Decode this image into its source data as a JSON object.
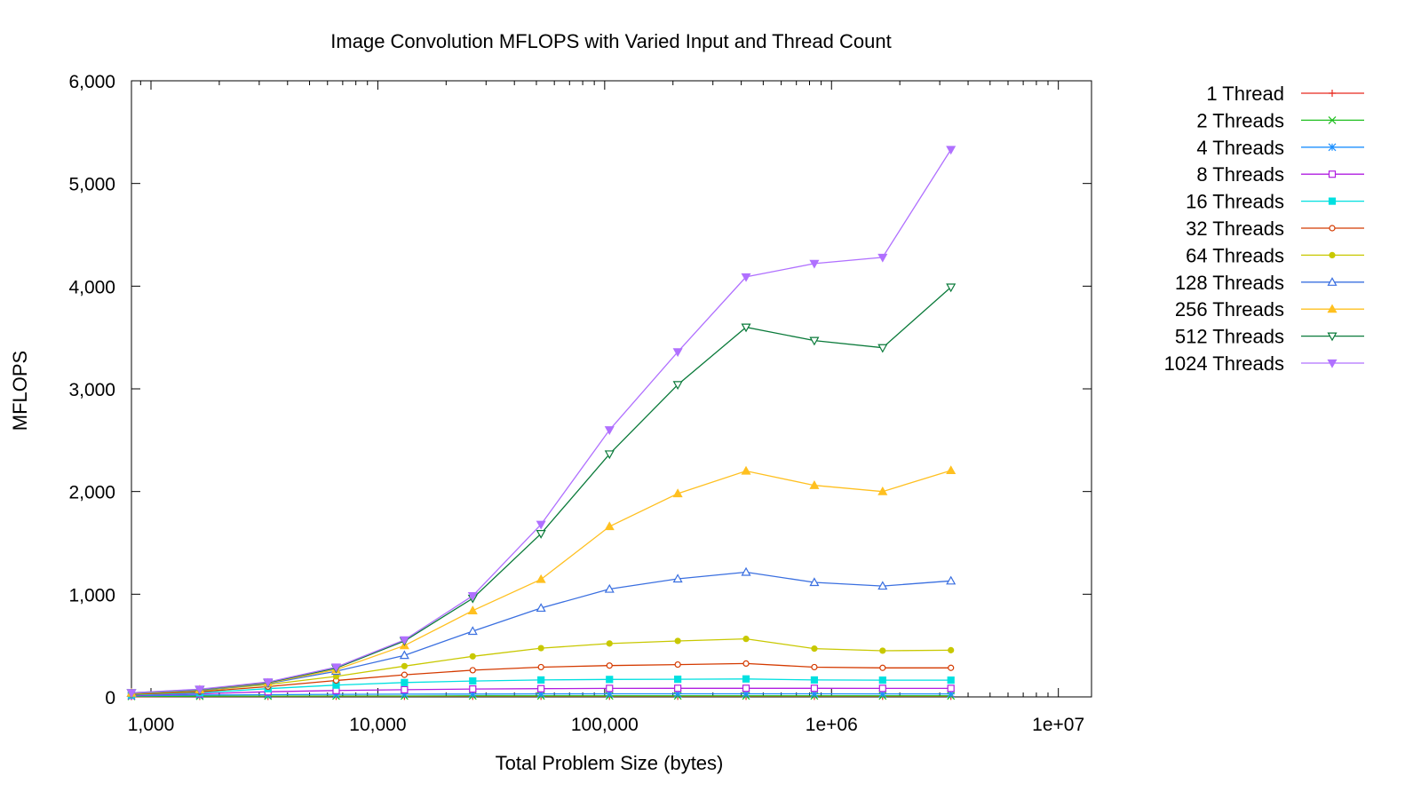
{
  "chart_data": {
    "type": "line",
    "title": "Image Convolution MFLOPS with Varied Input and Thread Count",
    "xlabel": "Total Problem Size (bytes)",
    "ylabel": "MFLOPS",
    "x_scale": "log",
    "xlim": [
      820,
      14000000
    ],
    "ylim": [
      0,
      6000
    ],
    "x_ticks": [
      1000,
      10000,
      100000,
      1000000,
      10000000
    ],
    "x_tick_labels": [
      "1,000",
      "10,000",
      "100,000",
      "1e+06",
      "1e+07"
    ],
    "y_ticks": [
      0,
      1000,
      2000,
      3000,
      4000,
      5000,
      6000
    ],
    "y_tick_labels": [
      "0",
      "1,000",
      "2,000",
      "3,000",
      "4,000",
      "5,000",
      "6,000"
    ],
    "grid": false,
    "legend_position": "outside-right-top",
    "x": [
      820,
      1640,
      3280,
      6550,
      13100,
      26200,
      52400,
      105000,
      210000,
      420000,
      840000,
      1680000,
      3360000
    ],
    "series": [
      {
        "name": "1 Thread",
        "color": "#e8281e",
        "marker": "plus",
        "values": [
          3,
          4,
          4,
          5,
          5,
          5,
          5,
          5,
          5,
          5,
          5,
          5,
          5
        ]
      },
      {
        "name": "2 Threads",
        "color": "#1fbf1f",
        "marker": "cross",
        "values": [
          5,
          7,
          8,
          9,
          9,
          10,
          10,
          10,
          10,
          10,
          10,
          10,
          10
        ]
      },
      {
        "name": "4 Threads",
        "color": "#1e90ff",
        "marker": "star",
        "values": [
          10,
          18,
          22,
          25,
          27,
          28,
          29,
          30,
          30,
          30,
          30,
          29,
          29
        ]
      },
      {
        "name": "8 Threads",
        "color": "#b01ee0",
        "marker": "square-open",
        "values": [
          15,
          30,
          50,
          62,
          70,
          77,
          80,
          83,
          84,
          84,
          84,
          83,
          83
        ]
      },
      {
        "name": "16 Threads",
        "color": "#00e0e0",
        "marker": "square-filled",
        "values": [
          20,
          40,
          80,
          115,
          140,
          155,
          165,
          170,
          172,
          175,
          165,
          163,
          163
        ]
      },
      {
        "name": "32 Threads",
        "color": "#d43a00",
        "marker": "circle-open",
        "values": [
          25,
          50,
          100,
          160,
          215,
          260,
          290,
          305,
          315,
          325,
          290,
          283,
          283
        ]
      },
      {
        "name": "64 Threads",
        "color": "#c8c800",
        "marker": "circle-filled",
        "values": [
          30,
          60,
          120,
          200,
          300,
          395,
          475,
          520,
          545,
          565,
          470,
          450,
          455
        ]
      },
      {
        "name": "128 Threads",
        "color": "#3a6fe0",
        "marker": "triangle-open",
        "values": [
          35,
          65,
          130,
          250,
          405,
          640,
          865,
          1050,
          1150,
          1215,
          1115,
          1080,
          1130
        ]
      },
      {
        "name": "256 Threads",
        "color": "#ffc020",
        "marker": "triangle-filled",
        "values": [
          38,
          70,
          135,
          265,
          500,
          840,
          1145,
          1660,
          1980,
          2200,
          2060,
          2000,
          2205
        ]
      },
      {
        "name": "512 Threads",
        "color": "#0a7a3a",
        "marker": "triangle-down-open",
        "values": [
          40,
          72,
          140,
          280,
          545,
          960,
          1590,
          2365,
          3040,
          3600,
          3470,
          3400,
          3990
        ]
      },
      {
        "name": "1024 Threads",
        "color": "#b070ff",
        "marker": "triangle-down-filled",
        "values": [
          40,
          75,
          145,
          290,
          555,
          985,
          1680,
          2600,
          3360,
          4090,
          4220,
          4280,
          5330
        ]
      }
    ]
  }
}
